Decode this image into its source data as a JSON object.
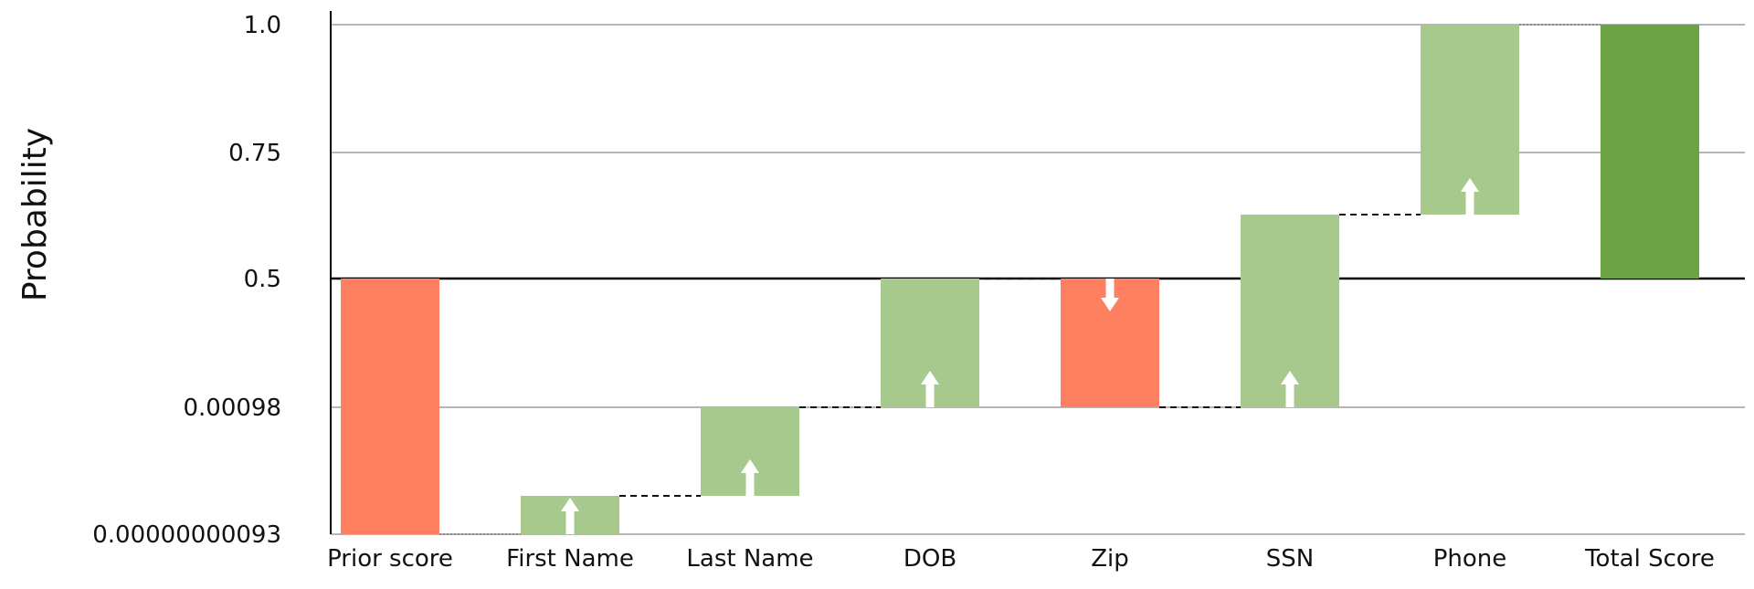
{
  "chart_data": {
    "type": "bar",
    "subtype": "waterfall",
    "title": "",
    "xlabel": "",
    "ylabel": "Probability",
    "y_ticks": [
      "0.00000000093",
      "0.00098",
      "0.5",
      "0.75",
      "1.0"
    ],
    "categories": [
      "Prior score",
      "First Name",
      "Last Name",
      "DOB",
      "Zip",
      "SSN",
      "Phone",
      "Total Score"
    ],
    "bars": [
      {
        "category": "Prior score",
        "from": "0.5",
        "to": "0.00000000093",
        "kind": "prior",
        "direction": "down",
        "show_arrow": false
      },
      {
        "category": "First Name",
        "from": "0.00000000093",
        "to": "0.000000093",
        "kind": "increase",
        "direction": "up",
        "show_arrow": true
      },
      {
        "category": "Last Name",
        "from": "0.000000093",
        "to": "0.00098",
        "kind": "increase",
        "direction": "up",
        "show_arrow": true
      },
      {
        "category": "DOB",
        "from": "0.00098",
        "to": "0.5",
        "kind": "increase",
        "direction": "up",
        "show_arrow": true
      },
      {
        "category": "Zip",
        "from": "0.5",
        "to": "0.00098",
        "kind": "decrease",
        "direction": "down",
        "show_arrow": true
      },
      {
        "category": "SSN",
        "from": "0.00098",
        "to": "0.625",
        "kind": "increase",
        "direction": "up",
        "show_arrow": true
      },
      {
        "category": "Phone",
        "from": "0.625",
        "to": "1.0",
        "kind": "increase",
        "direction": "up",
        "show_arrow": true
      },
      {
        "category": "Total Score",
        "from": "0.5",
        "to": "1.0",
        "kind": "total",
        "direction": "up",
        "show_arrow": false
      }
    ],
    "grid": true,
    "baseline": "0.5",
    "colors": {
      "prior": "#ff7f61",
      "decrease": "#ff7f61",
      "increase": "#a8c98e",
      "total": "#6aa244",
      "grid": "#8a8a8a",
      "axis": "#000000",
      "arrow": "#ffffff"
    }
  }
}
